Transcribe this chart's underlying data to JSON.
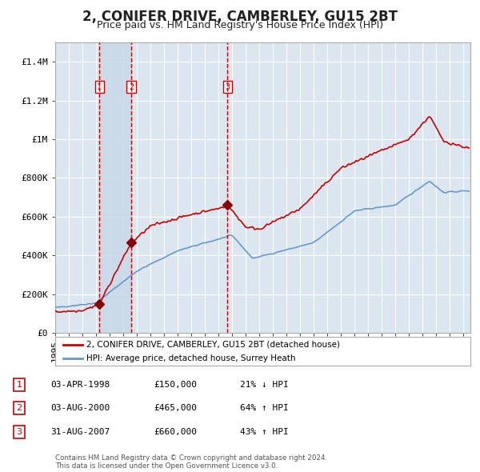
{
  "title": "2, CONIFER DRIVE, CAMBERLEY, GU15 2BT",
  "subtitle": "Price paid vs. HM Land Registry's House Price Index (HPI)",
  "title_fontsize": 12,
  "subtitle_fontsize": 9,
  "background_color": "#ffffff",
  "plot_bg_color": "#dce6f0",
  "grid_color": "#ffffff",
  "ylim": [
    0,
    1500000
  ],
  "yticks": [
    0,
    200000,
    400000,
    600000,
    800000,
    1000000,
    1200000,
    1400000
  ],
  "ytick_labels": [
    "£0",
    "£200K",
    "£400K",
    "£600K",
    "£800K",
    "£1M",
    "£1.2M",
    "£1.4M"
  ],
  "sale_dates_num": [
    1998.25,
    2000.58,
    2007.66
  ],
  "sale_prices": [
    150000,
    465000,
    660000
  ],
  "sale_labels": [
    "1",
    "2",
    "3"
  ],
  "vspan_pairs": [
    [
      1998.25,
      2000.58
    ]
  ],
  "vline_dates": [
    1998.25,
    2000.58,
    2007.66
  ],
  "red_line_color": "#cc0000",
  "blue_line_color": "#6699cc",
  "vline_color": "#cc0000",
  "vspan_color": "#c8d8e8",
  "marker_color": "#880000",
  "legend_label_red": "2, CONIFER DRIVE, CAMBERLEY, GU15 2BT (detached house)",
  "legend_label_blue": "HPI: Average price, detached house, Surrey Heath",
  "table_rows": [
    [
      "1",
      "03-APR-1998",
      "£150,000",
      "21% ↓ HPI"
    ],
    [
      "2",
      "03-AUG-2000",
      "£465,000",
      "64% ↑ HPI"
    ],
    [
      "3",
      "31-AUG-2007",
      "£660,000",
      "43% ↑ HPI"
    ]
  ],
  "footnote": "Contains HM Land Registry data © Crown copyright and database right 2024.\nThis data is licensed under the Open Government Licence v3.0.",
  "xmin": 1995,
  "xmax": 2025.5
}
